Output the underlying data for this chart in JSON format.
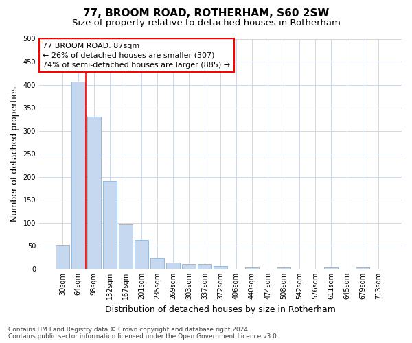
{
  "title": "77, BROOM ROAD, ROTHERHAM, S60 2SW",
  "subtitle": "Size of property relative to detached houses in Rotherham",
  "xlabel": "Distribution of detached houses by size in Rotherham",
  "ylabel": "Number of detached properties",
  "categories": [
    "30sqm",
    "64sqm",
    "98sqm",
    "132sqm",
    "167sqm",
    "201sqm",
    "235sqm",
    "269sqm",
    "303sqm",
    "337sqm",
    "372sqm",
    "406sqm",
    "440sqm",
    "474sqm",
    "508sqm",
    "542sqm",
    "576sqm",
    "611sqm",
    "645sqm",
    "679sqm",
    "713sqm"
  ],
  "values": [
    52,
    407,
    331,
    191,
    97,
    62,
    24,
    13,
    10,
    10,
    6,
    0,
    5,
    0,
    4,
    0,
    0,
    4,
    0,
    4,
    0
  ],
  "bar_color": "#c5d8f0",
  "bar_edgecolor": "#8ab4d8",
  "ylim": [
    0,
    500
  ],
  "yticks": [
    0,
    50,
    100,
    150,
    200,
    250,
    300,
    350,
    400,
    450,
    500
  ],
  "property_label": "77 BROOM ROAD: 87sqm",
  "pct_smaller": "26% of detached houses are smaller (307)",
  "pct_larger": "74% of semi-detached houses are larger (885)",
  "red_line_x": 1.5,
  "footnote1": "Contains HM Land Registry data © Crown copyright and database right 2024.",
  "footnote2": "Contains public sector information licensed under the Open Government Licence v3.0.",
  "bg_color": "#ffffff",
  "grid_color": "#d0d8e8",
  "title_fontsize": 11,
  "subtitle_fontsize": 9.5,
  "axis_label_fontsize": 9,
  "tick_fontsize": 7,
  "annotation_fontsize": 8,
  "footnote_fontsize": 6.5
}
